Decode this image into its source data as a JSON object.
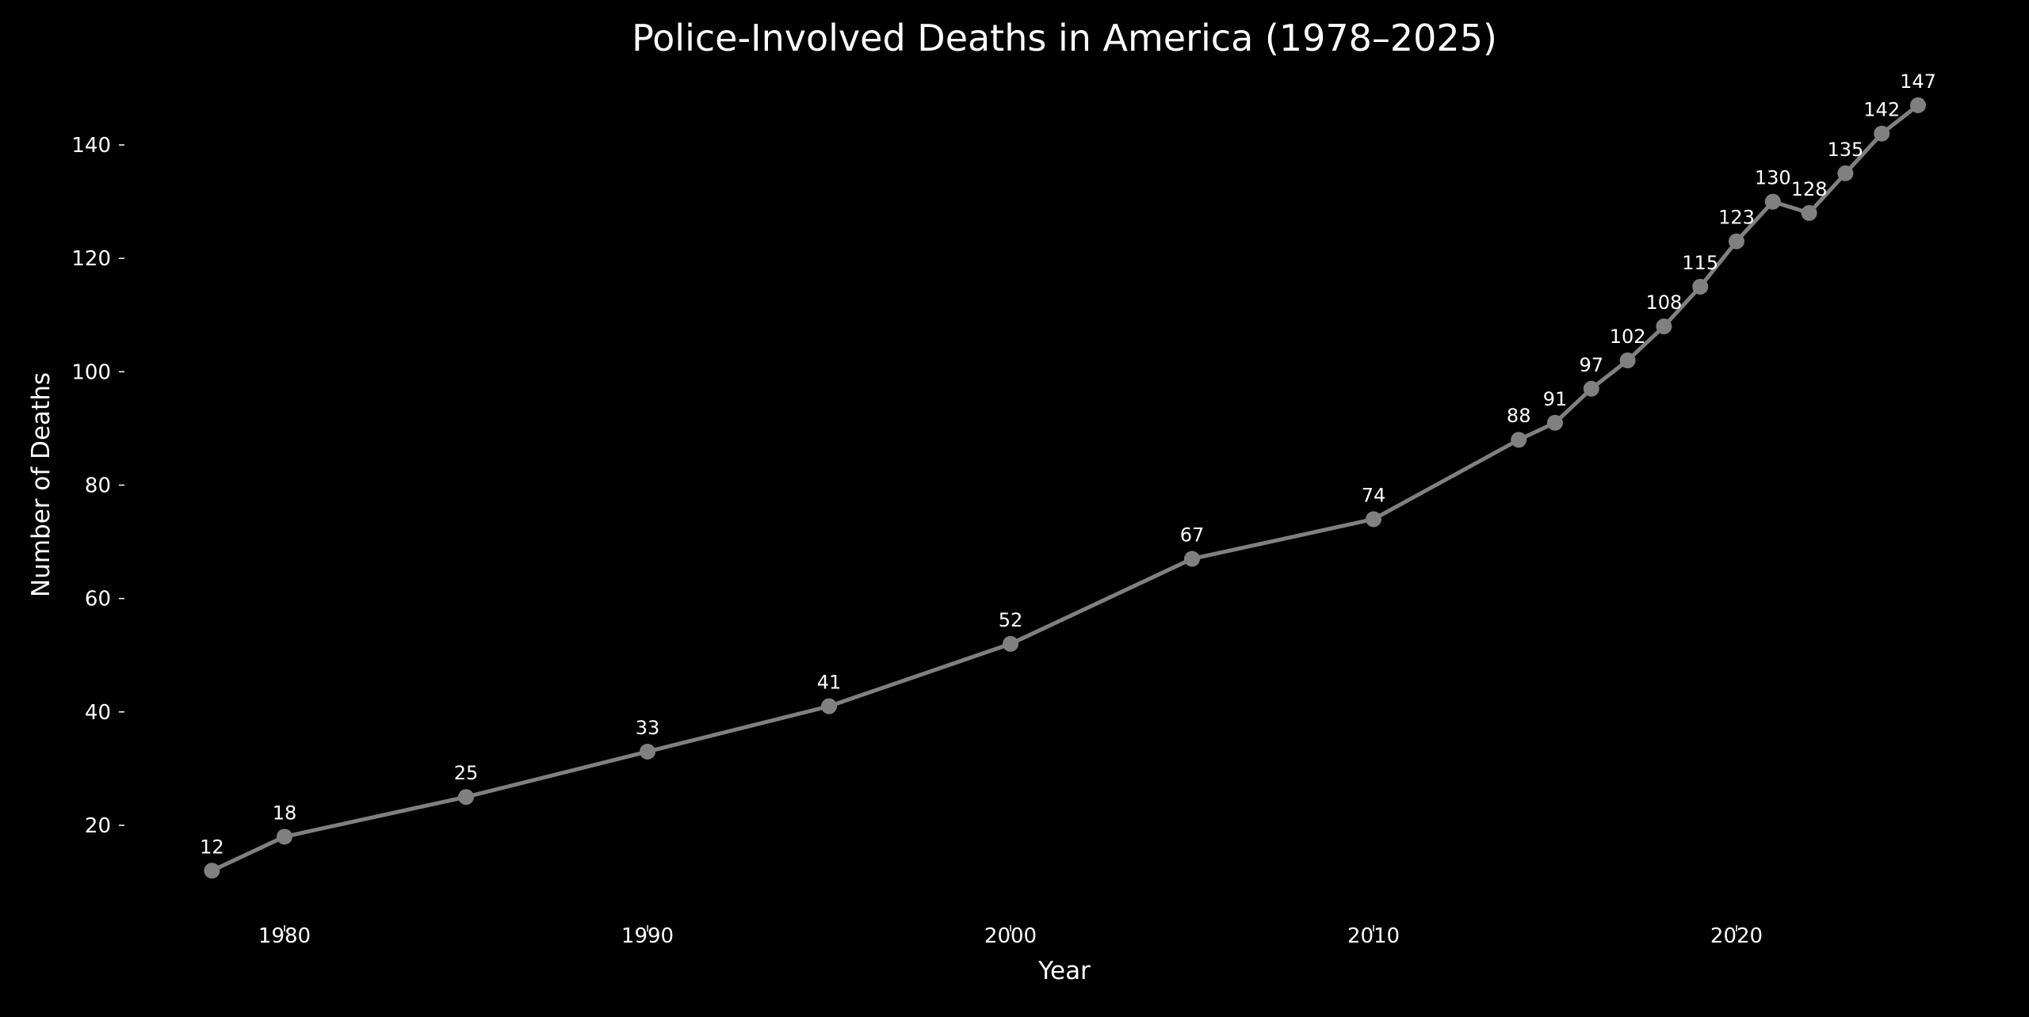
{
  "chart_data": {
    "type": "line",
    "title": "Police-Involved Deaths in America (1978–2025)",
    "xlabel": "Year",
    "ylabel": "Number of Deaths",
    "x": [
      1978,
      1980,
      1985,
      1990,
      1995,
      2000,
      2005,
      2010,
      2014,
      2015,
      2016,
      2017,
      2018,
      2019,
      2020,
      2021,
      2022,
      2023,
      2024,
      2025
    ],
    "series": [
      {
        "values": [
          12,
          18,
          25,
          33,
          41,
          52,
          67,
          74,
          88,
          91,
          97,
          102,
          108,
          115,
          123,
          130,
          128,
          135,
          142,
          147
        ]
      }
    ],
    "xticks": [
      "1980",
      "1990",
      "2000",
      "2010",
      "2020"
    ],
    "yticks": [
      "20",
      "40",
      "60",
      "80",
      "100",
      "120",
      "140"
    ],
    "xlim": [
      1975.6,
      2027.4
    ],
    "ylim": [
      5.25,
      153.75
    ],
    "grid": false,
    "data_labels": true,
    "line_color": "#808080",
    "background": "#000000",
    "text_color": "#ffffff"
  }
}
